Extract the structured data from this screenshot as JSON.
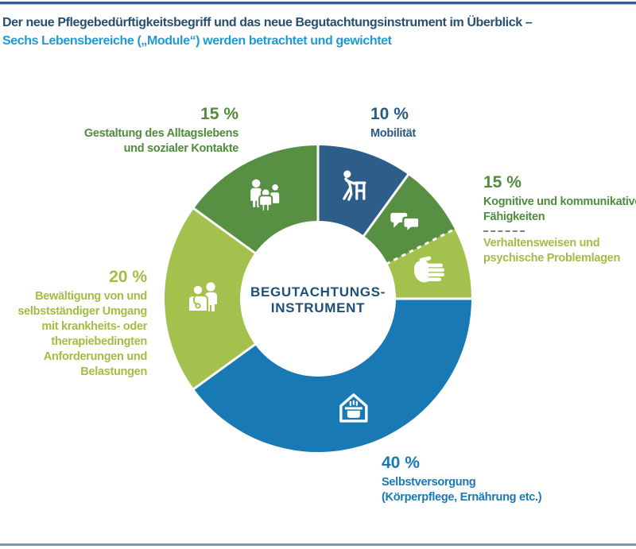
{
  "header": {
    "title_line1": "Der neue Pflegebedürftigkeitsbegriff und das neue Begutachtungsinstrument im Überblick –",
    "title_line2": "Sechs Lebensbereiche („Module“) werden betrachtet und gewichtet"
  },
  "colors": {
    "title_navy": "#27506f",
    "title_blue": "#1e9ad8",
    "label_navy": "#275a84",
    "label_green": "#4f8c3c",
    "label_lime": "#a2bd44",
    "label_blue": "#1879b4",
    "center_navy": "#1d5078",
    "segment_dark_blue": "#2d5e89",
    "segment_green": "#579043",
    "segment_lime": "#a5c14d",
    "segment_blue": "#1879b4",
    "top_rule": "#33608c",
    "bottom_rule": "#7d95ad",
    "separator_white": "#ffffff"
  },
  "chart_data": {
    "type": "pie",
    "variant": "donut",
    "title": "Der neue Pflegebedürftigkeitsbegriff und das neue Begutachtungsinstrument im Überblick – Sechs Lebensbereiche („Module“) werden betrachtet und gewichtet",
    "center_label": [
      "BEGUTACHTUNGS-",
      "INSTRUMENT"
    ],
    "legend_position": "around",
    "geometry": {
      "outer_radius": 193,
      "inner_radius": 98,
      "icon_radius": 145,
      "start_angle_deg": 0
    },
    "segments": [
      {
        "key": "mobilitaet",
        "label": "Mobilität",
        "value": 10,
        "display_weight": "10 %",
        "color": "#2d5e89",
        "icon": "walker-icon",
        "divider_after": "solid"
      },
      {
        "key": "kognitiv",
        "label": "Kognitive und kommunikative Fähigkeiten",
        "value": 7.5,
        "display_weight": "15 % (combined with Verhaltensweisen und psychische Problemlagen)",
        "color": "#579043",
        "icon": "speech-bubbles-icon",
        "divider_after": "dashed"
      },
      {
        "key": "verhalten",
        "label": "Verhaltensweisen und psychische Problemlagen",
        "value": 7.5,
        "display_weight": "15 % (combined with Kognitive und kommunikative Fähigkeiten)",
        "color": "#a5c14d",
        "icon": "hand-icon",
        "divider_after": "solid"
      },
      {
        "key": "selbstversorgung",
        "label": "Selbstversorgung (Körperpflege, Ernährung etc.)",
        "value": 40,
        "display_weight": "40 %",
        "color": "#1879b4",
        "icon": "house-pot-icon",
        "divider_after": "solid"
      },
      {
        "key": "bewaeltigung",
        "label": "Bewältigung von und selbstständiger Umgang mit krankheits- oder therapiebedingten Anforderungen und Belastungen",
        "value": 20,
        "display_weight": "20 %",
        "color": "#a5c14d",
        "icon": "doctor-patient-icon",
        "divider_after": "solid"
      },
      {
        "key": "gestaltung",
        "label": "Gestaltung des Alltagslebens und sozialer Kontakte",
        "value": 15,
        "display_weight": "15 %",
        "color": "#579043",
        "icon": "family-icon",
        "divider_after": "solid"
      }
    ],
    "callouts": {
      "gestaltung": {
        "percent": "15 %",
        "lines": [
          "Gestaltung des Alltagslebens",
          "und sozialer Kontakte"
        ]
      },
      "mobilitaet": {
        "percent": "10 %",
        "lines": [
          "Mobilität"
        ]
      },
      "kognitiv": {
        "percent": "15 %",
        "group1": [
          "Kognitive und kommunikative",
          "Fähigkeiten"
        ],
        "group2": [
          "Verhaltensweisen und",
          "psychische Problemlagen"
        ]
      },
      "bewaeltigung": {
        "percent": "20 %",
        "lines": [
          "Bewältigung von und",
          "selbstständiger Umgang",
          "mit krankheits- oder",
          "therapiebedingten",
          "Anforderungen und",
          "Belastungen"
        ]
      },
      "selbstversorgung": {
        "percent": "40 %",
        "lines": [
          "Selbstversorgung",
          "(Körperpflege, Ernährung etc.)"
        ]
      }
    }
  }
}
